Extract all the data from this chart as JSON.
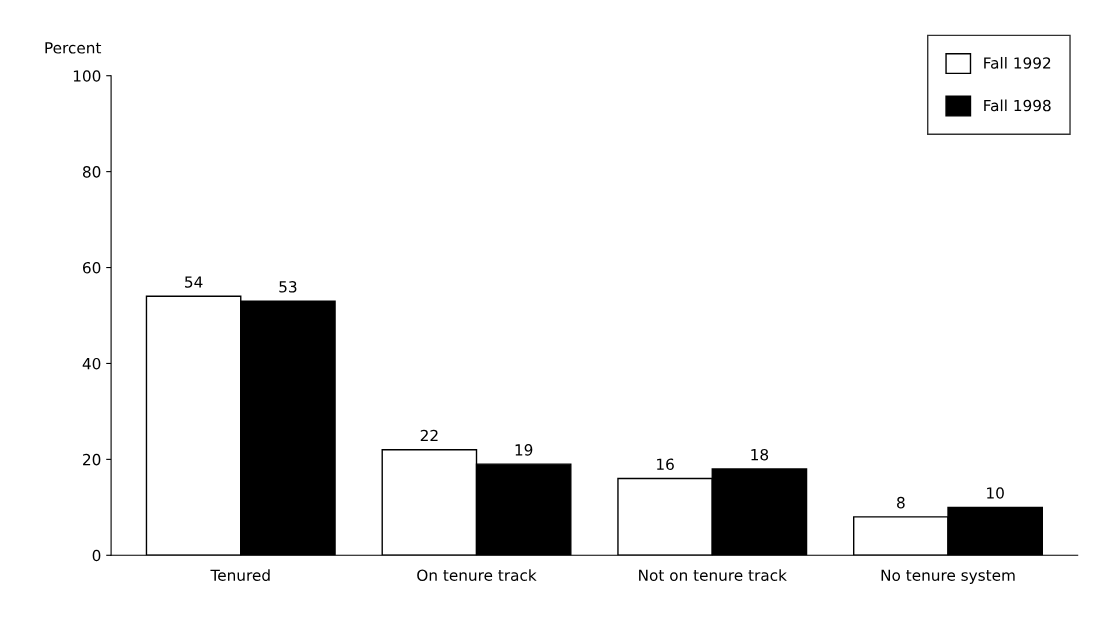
{
  "chart_data": {
    "type": "bar",
    "ylabel": "Percent",
    "categories": [
      "Tenured",
      "On tenure track",
      "Not on tenure track",
      "No tenure system"
    ],
    "series": [
      {
        "name": "Fall 1992",
        "color": "#ffffff",
        "values": [
          54,
          22,
          16,
          8
        ]
      },
      {
        "name": "Fall 1998",
        "color": "#000000",
        "values": [
          53,
          19,
          18,
          10
        ]
      }
    ],
    "ylim": [
      0,
      100
    ],
    "yticks": [
      0,
      20,
      40,
      60,
      80,
      100
    ],
    "data_labels": true,
    "grid": false,
    "legend": "top right"
  }
}
